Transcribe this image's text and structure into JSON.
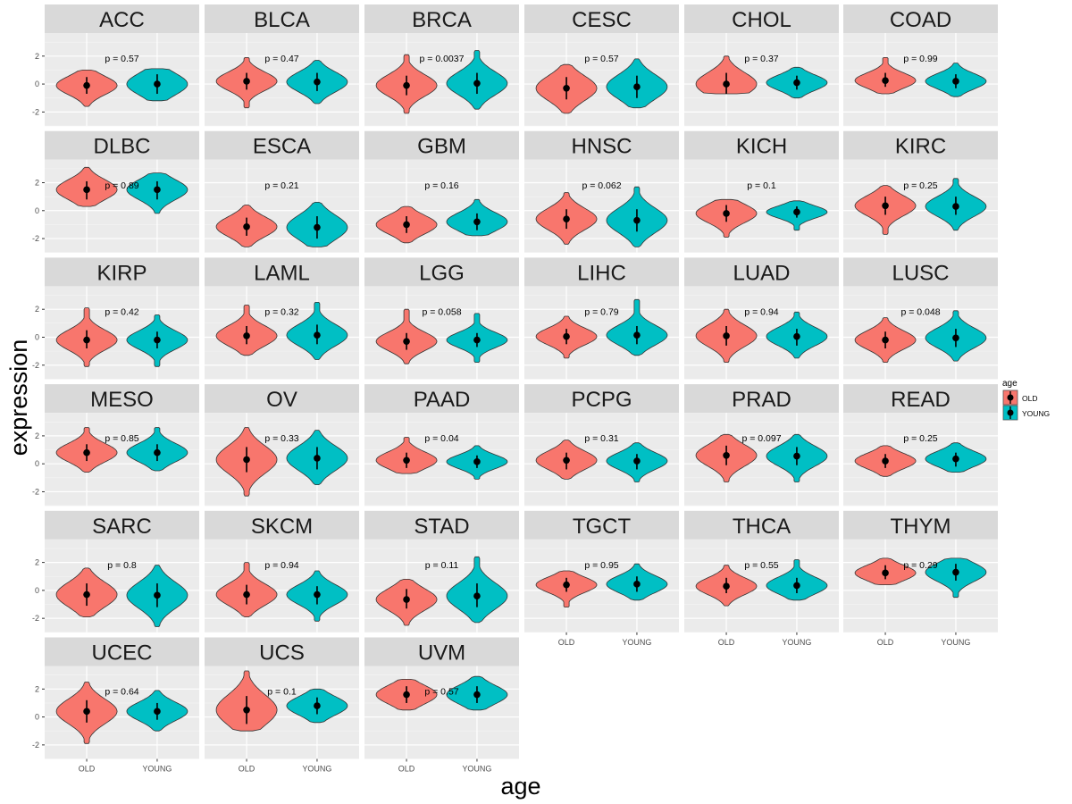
{
  "chart_data": {
    "type": "violin",
    "xlabel": "age",
    "ylabel": "expression",
    "categories": [
      "OLD",
      "YOUNG"
    ],
    "ylim": [
      -3.0,
      3.65
    ],
    "yticks": [
      -2,
      0,
      2
    ],
    "ytick_labels": [
      "-2",
      "0",
      "2"
    ],
    "grid": true,
    "legend": {
      "title": "age",
      "placement": "right",
      "entries": [
        "OLD",
        "YOUNG"
      ]
    },
    "colors": {
      "OLD": "#F8766D",
      "YOUNG": "#00BFC4",
      "strip": "#D9D9D9",
      "panel": "#EBEBEB"
    },
    "value_format": "each group: [violin_min, violin_max, mean, errorbar_low, errorbar_high]",
    "panels": [
      {
        "name": "ACC",
        "p": "p = 0.57",
        "OLD": [
          -1.6,
          1.0,
          -0.1,
          -0.7,
          0.5
        ],
        "YOUNG": [
          -1.2,
          1.1,
          0,
          -0.7,
          0.7
        ]
      },
      {
        "name": "BLCA",
        "p": "p = 0.47",
        "OLD": [
          -1.7,
          1.9,
          0.2,
          -0.4,
          0.8
        ],
        "YOUNG": [
          -1.4,
          1.7,
          0.15,
          -0.5,
          0.8
        ]
      },
      {
        "name": "BRCA",
        "p": "p = 0.0037",
        "OLD": [
          -2.1,
          2.1,
          -0.1,
          -0.8,
          0.6
        ],
        "YOUNG": [
          -1.8,
          2.4,
          0.05,
          -0.7,
          0.8
        ]
      },
      {
        "name": "CESC",
        "p": "p = 0.57",
        "OLD": [
          -2.1,
          1.4,
          -0.3,
          -1.1,
          0.5
        ],
        "YOUNG": [
          -1.7,
          1.8,
          -0.2,
          -1.0,
          0.6
        ]
      },
      {
        "name": "CHOL",
        "p": "p = 0.37",
        "OLD": [
          -0.7,
          2.0,
          0,
          -0.7,
          0.8
        ],
        "YOUNG": [
          -1.0,
          1.2,
          0.1,
          -0.4,
          0.6
        ]
      },
      {
        "name": "COAD",
        "p": "p = 0.99",
        "OLD": [
          -0.7,
          1.9,
          0.25,
          -0.2,
          0.8
        ],
        "YOUNG": [
          -0.9,
          1.5,
          0.2,
          -0.3,
          0.7
        ]
      },
      {
        "name": "DLBC",
        "p": "p = 0.89",
        "OLD": [
          0.3,
          3.1,
          1.5,
          0.8,
          2.1
        ],
        "YOUNG": [
          -0.2,
          2.7,
          1.5,
          0.8,
          2.1
        ]
      },
      {
        "name": "ESCA",
        "p": "p = 0.21",
        "OLD": [
          -2.6,
          0.4,
          -1.15,
          -1.8,
          -0.5
        ],
        "YOUNG": [
          -2.6,
          0.6,
          -1.2,
          -2.0,
          -0.4
        ]
      },
      {
        "name": "GBM",
        "p": "p = 0.16",
        "OLD": [
          -2.3,
          0.3,
          -1.0,
          -1.6,
          -0.4
        ],
        "YOUNG": [
          -1.8,
          0.8,
          -0.8,
          -1.4,
          -0.2
        ]
      },
      {
        "name": "HNSC",
        "p": "p = 0.062",
        "OLD": [
          -2.4,
          1.3,
          -0.6,
          -1.3,
          0.1
        ],
        "YOUNG": [
          -2.6,
          1.7,
          -0.7,
          -1.5,
          0.1
        ]
      },
      {
        "name": "KICH",
        "p": "p = 0.1",
        "OLD": [
          -1.9,
          0.8,
          -0.2,
          -0.8,
          0.4
        ],
        "YOUNG": [
          -1.4,
          0.7,
          -0.1,
          -0.5,
          0.3
        ]
      },
      {
        "name": "KIRC",
        "p": "p = 0.25",
        "OLD": [
          -1.7,
          1.8,
          0.35,
          -0.3,
          1.0
        ],
        "YOUNG": [
          -1.4,
          2.3,
          0.3,
          -0.3,
          1.0
        ]
      },
      {
        "name": "KIRP",
        "p": "p = 0.42",
        "OLD": [
          -2.1,
          2.1,
          -0.2,
          -0.8,
          0.5
        ],
        "YOUNG": [
          -2.1,
          1.6,
          -0.2,
          -0.8,
          0.4
        ]
      },
      {
        "name": "LAML",
        "p": "p = 0.32",
        "OLD": [
          -1.3,
          2.3,
          0.1,
          -0.5,
          0.8
        ],
        "YOUNG": [
          -1.6,
          2.5,
          0.15,
          -0.5,
          0.9
        ]
      },
      {
        "name": "LGG",
        "p": "p = 0.058",
        "OLD": [
          -1.9,
          2.0,
          -0.3,
          -0.9,
          0.3
        ],
        "YOUNG": [
          -1.8,
          1.7,
          -0.2,
          -0.7,
          0.3
        ]
      },
      {
        "name": "LIHC",
        "p": "p = 0.79",
        "OLD": [
          -1.5,
          1.5,
          0.05,
          -0.5,
          0.6
        ],
        "YOUNG": [
          -1.3,
          2.7,
          0.15,
          -0.5,
          0.8
        ]
      },
      {
        "name": "LUAD",
        "p": "p = 0.94",
        "OLD": [
          -1.8,
          2.0,
          0.1,
          -0.6,
          0.8
        ],
        "YOUNG": [
          -1.5,
          1.8,
          0.05,
          -0.6,
          0.6
        ]
      },
      {
        "name": "LUSC",
        "p": "p = 0.048",
        "OLD": [
          -1.8,
          1.4,
          -0.2,
          -0.8,
          0.4
        ],
        "YOUNG": [
          -1.7,
          1.9,
          -0.05,
          -0.7,
          0.6
        ]
      },
      {
        "name": "MESO",
        "p": "p = 0.85",
        "OLD": [
          -0.6,
          2.6,
          0.8,
          0.2,
          1.4
        ],
        "YOUNG": [
          -0.5,
          2.6,
          0.8,
          0.2,
          1.4
        ]
      },
      {
        "name": "OV",
        "p": "p = 0.33",
        "OLD": [
          -2.3,
          2.6,
          0.3,
          -0.6,
          1.2
        ],
        "YOUNG": [
          -1.5,
          2.4,
          0.4,
          -0.4,
          1.2
        ]
      },
      {
        "name": "PAAD",
        "p": "p = 0.04",
        "OLD": [
          -0.7,
          1.9,
          0.25,
          -0.3,
          0.8
        ],
        "YOUNG": [
          -1.1,
          1.3,
          0.15,
          -0.3,
          0.6
        ]
      },
      {
        "name": "PCPG",
        "p": "p = 0.31",
        "OLD": [
          -1.1,
          1.7,
          0.25,
          -0.4,
          0.8
        ],
        "YOUNG": [
          -1.3,
          1.5,
          0.2,
          -0.4,
          0.7
        ]
      },
      {
        "name": "PRAD",
        "p": "p = 0.097",
        "OLD": [
          -1.3,
          2.1,
          0.6,
          -0.1,
          1.3
        ],
        "YOUNG": [
          -1.3,
          2.1,
          0.55,
          -0.1,
          1.2
        ]
      },
      {
        "name": "READ",
        "p": "p = 0.25",
        "OLD": [
          -0.9,
          1.3,
          0.2,
          -0.3,
          0.7
        ],
        "YOUNG": [
          -0.6,
          1.5,
          0.35,
          -0.2,
          0.8
        ]
      },
      {
        "name": "SARC",
        "p": "p = 0.8",
        "OLD": [
          -1.9,
          1.6,
          -0.3,
          -1.1,
          0.5
        ],
        "YOUNG": [
          -2.6,
          1.8,
          -0.35,
          -1.2,
          0.5
        ]
      },
      {
        "name": "SKCM",
        "p": "p = 0.94",
        "OLD": [
          -1.9,
          2.0,
          -0.3,
          -1.0,
          0.4
        ],
        "YOUNG": [
          -2.2,
          1.4,
          -0.3,
          -1.0,
          0.3
        ]
      },
      {
        "name": "STAD",
        "p": "p = 0.11",
        "OLD": [
          -2.5,
          0.8,
          -0.65,
          -1.3,
          0.1
        ],
        "YOUNG": [
          -2.3,
          2.4,
          -0.4,
          -1.2,
          0.5
        ]
      },
      {
        "name": "TGCT",
        "p": "p = 0.95",
        "OLD": [
          -1.2,
          1.4,
          0.4,
          -0.1,
          0.9
        ],
        "YOUNG": [
          -0.7,
          1.9,
          0.45,
          -0.1,
          1.0
        ]
      },
      {
        "name": "THCA",
        "p": "p = 0.55",
        "OLD": [
          -1.1,
          1.8,
          0.3,
          -0.2,
          0.9
        ],
        "YOUNG": [
          -0.7,
          2.2,
          0.35,
          -0.2,
          0.9
        ]
      },
      {
        "name": "THYM",
        "p": "p = 0.29",
        "OLD": [
          0.4,
          2.3,
          1.25,
          0.8,
          1.8
        ],
        "YOUNG": [
          -0.5,
          2.3,
          1.3,
          0.7,
          1.9
        ]
      },
      {
        "name": "UCEC",
        "p": "p = 0.64",
        "OLD": [
          -1.9,
          2.5,
          0.4,
          -0.4,
          1.2
        ],
        "YOUNG": [
          -1.0,
          1.9,
          0.4,
          -0.2,
          1.0
        ]
      },
      {
        "name": "UCS",
        "p": "p = 0.1",
        "OLD": [
          -1.0,
          3.3,
          0.5,
          -0.5,
          1.5
        ],
        "YOUNG": [
          -0.4,
          2.0,
          0.8,
          0.2,
          1.4
        ]
      },
      {
        "name": "UVM",
        "p": "p = 0.57",
        "OLD": [
          0.5,
          2.7,
          1.6,
          1.0,
          2.2
        ],
        "YOUNG": [
          0.5,
          2.9,
          1.6,
          1.0,
          2.2
        ]
      }
    ]
  }
}
